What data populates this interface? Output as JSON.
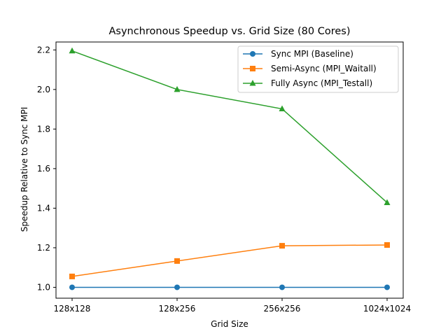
{
  "chart_data": {
    "type": "line",
    "title": "Asynchronous Speedup vs. Grid Size (80 Cores)",
    "xlabel": "Grid Size",
    "ylabel": "Speedup Relative to Sync MPI",
    "categories": [
      "128x128",
      "128x256",
      "256x256",
      "1024x1024"
    ],
    "ylim": [
      0.945,
      2.24
    ],
    "yticks": [
      "1.0",
      "1.2",
      "1.4",
      "1.6",
      "1.8",
      "2.0",
      "2.2"
    ],
    "grid": false,
    "legend_position": "top-right",
    "series": [
      {
        "name": "Sync MPI (Baseline)",
        "marker": "circle",
        "color": "#1f77b4",
        "values": [
          1.0,
          1.0,
          1.0,
          1.0
        ]
      },
      {
        "name": "Semi-Async (MPI_Waitall)",
        "marker": "square",
        "color": "#ff7f0e",
        "values": [
          1.055,
          1.133,
          1.21,
          1.214
        ]
      },
      {
        "name": "Fully Async (MPI_Testall)",
        "marker": "triangle",
        "color": "#2ca02c",
        "values": [
          2.195,
          2.0,
          1.902,
          1.428
        ]
      }
    ]
  }
}
